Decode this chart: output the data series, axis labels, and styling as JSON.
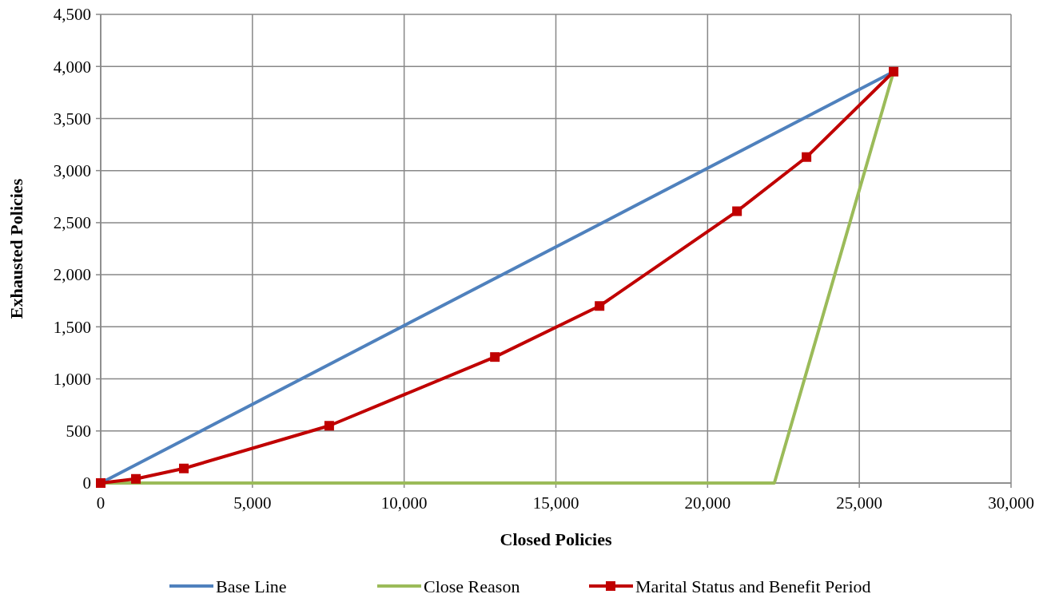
{
  "chart_data": {
    "type": "line",
    "xlabel": "Closed Policies",
    "ylabel": "Exhausted Policies",
    "xlim": [
      0,
      30000
    ],
    "xticks": [
      {
        "value": 0,
        "label": "0"
      },
      {
        "value": 5000,
        "label": "5,000"
      },
      {
        "value": 10000,
        "label": "10,000"
      },
      {
        "value": 15000,
        "label": "15,000"
      },
      {
        "value": 20000,
        "label": "20,000"
      },
      {
        "value": 25000,
        "label": "25,000"
      },
      {
        "value": 30000,
        "label": "30,000"
      }
    ],
    "ylim": [
      0,
      4500
    ],
    "yticks": [
      {
        "value": 0,
        "label": "0"
      },
      {
        "value": 500,
        "label": "500"
      },
      {
        "value": 1000,
        "label": "1,000"
      },
      {
        "value": 1500,
        "label": "1,500"
      },
      {
        "value": 2000,
        "label": "2,000"
      },
      {
        "value": 2500,
        "label": "2,500"
      },
      {
        "value": 3000,
        "label": "3,000"
      },
      {
        "value": 3500,
        "label": "3,500"
      },
      {
        "value": 4000,
        "label": "4,000"
      },
      {
        "value": 4500,
        "label": "4,500"
      }
    ],
    "grid": true,
    "legend": "bottom",
    "line_style": "solid",
    "series": [
      {
        "name": "Base Line",
        "color": "#4f81bd",
        "marker": "none",
        "x": [
          0,
          26130
        ],
        "values": [
          0,
          3950
        ]
      },
      {
        "name": "Close Reason",
        "color": "#9bbb59",
        "marker": "none",
        "x": [
          0,
          22200,
          26130
        ],
        "values": [
          0,
          0,
          3950
        ]
      },
      {
        "name": "Marital Status and Benefit Period",
        "color": "#c00000",
        "marker": "square",
        "x": [
          0,
          1160,
          2740,
          7530,
          12990,
          16440,
          20970,
          23260,
          26130
        ],
        "values": [
          0,
          40,
          140,
          550,
          1210,
          1700,
          2610,
          3130,
          3950
        ]
      }
    ]
  }
}
